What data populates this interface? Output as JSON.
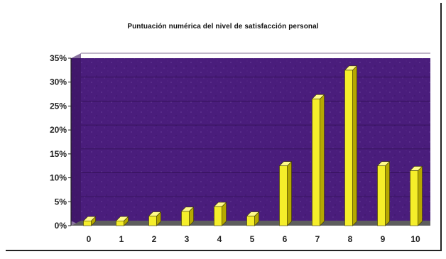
{
  "chart_data": {
    "type": "bar",
    "title": "Puntuación numérica del nivel de satisfacción personal",
    "categories": [
      "0",
      "1",
      "2",
      "3",
      "4",
      "5",
      "6",
      "7",
      "8",
      "9",
      "10"
    ],
    "values": [
      1,
      1,
      2,
      3,
      4,
      2,
      12.5,
      26.5,
      32.5,
      12.5,
      11.5
    ],
    "y_unit": "%",
    "ylim": [
      0,
      35
    ],
    "yticks": [
      0,
      5,
      10,
      15,
      20,
      25,
      30,
      35
    ],
    "ytick_labels": [
      "0%",
      "5%",
      "10%",
      "15%",
      "20%",
      "25%",
      "30%",
      "35%"
    ],
    "grid": true,
    "legend": false,
    "colors": {
      "plot_background": "#4a1d7c",
      "bar_face": "#f5ee2a",
      "bar_side": "#b5a800",
      "bar_top": "#fffa8a",
      "floor": "#5e5e5e"
    }
  }
}
